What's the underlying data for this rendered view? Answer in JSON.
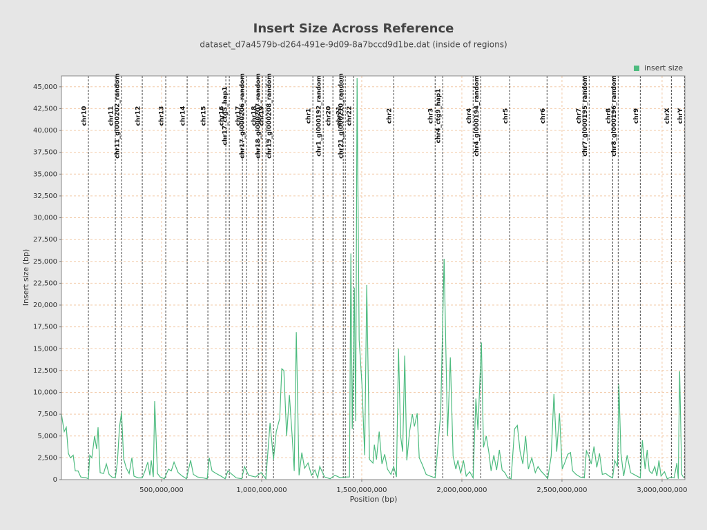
{
  "chart_data": {
    "type": "line",
    "title": "Insert Size Across Reference",
    "subtitle": "dataset_d7a4579b-d264-491e-9d09-8a7bccd9d1be.dat (inside of regions)",
    "x_label": "Position (bp)",
    "y_label": "Insert size (bp)",
    "xlim": [
      0,
      3114000000
    ],
    "ylim": [
      0,
      46250
    ],
    "xticks": [
      {
        "value": 500000000,
        "label": "500,000,000"
      },
      {
        "value": 1000000000,
        "label": "1,000,000,000"
      },
      {
        "value": 1500000000,
        "label": "1,500,000,000"
      },
      {
        "value": 2000000000,
        "label": "2,000,000,000"
      },
      {
        "value": 2500000000,
        "label": "2,500,000,000"
      },
      {
        "value": 3000000000,
        "label": "3,000,000,000"
      }
    ],
    "yticks": [
      0,
      {
        "value": 2500,
        "label": "2,500"
      },
      {
        "value": 5000,
        "label": "5,000"
      },
      {
        "value": 7500,
        "label": "7,500"
      },
      {
        "value": 10000,
        "label": "10,000"
      },
      {
        "value": 12500,
        "label": "12,500"
      },
      {
        "value": 15000,
        "label": "15,000"
      },
      {
        "value": 17500,
        "label": "17,500"
      },
      {
        "value": 20000,
        "label": "20,000"
      },
      {
        "value": 22500,
        "label": "22,500"
      },
      {
        "value": 25000,
        "label": "25,000"
      },
      {
        "value": 27500,
        "label": "27,500"
      },
      {
        "value": 30000,
        "label": "30,000"
      },
      {
        "value": 32500,
        "label": "32,500"
      },
      {
        "value": 35000,
        "label": "35,000"
      },
      {
        "value": 37500,
        "label": "37,500"
      },
      {
        "value": 40000,
        "label": "40,000"
      },
      {
        "value": 42500,
        "label": "42,500"
      },
      {
        "value": 45000,
        "label": "45,000"
      }
    ],
    "grid": true,
    "legend": "top-right",
    "x": [
      0,
      13800000,
      24150000,
      34500000,
      44850000,
      58650000,
      69000000,
      82800000,
      96600000,
      124200000,
      134550000,
      141450000,
      151800000,
      165600000,
      175950000,
      182850000,
      193200000,
      210450000,
      224250000,
      238050000,
      251850000,
      269100000,
      279450000,
      289800000,
      300150000,
      310500000,
      324300000,
      338100000,
      351900000,
      362250000,
      382950000,
      403650000,
      417450000,
      431250000,
      441600000,
      448500000,
      458850000,
      465750000,
      479550000,
      493350000,
      514050000,
      534750000,
      548550000,
      562350000,
      583050000,
      603750000,
      624450000,
      645150000,
      658950000,
      679650000,
      707250000,
      727950000,
      738300000,
      752100000,
      772800000,
      796950000,
      817650000,
      831450000,
      852150000,
      872850000,
      900450000,
      914250000,
      934950000,
      969450000,
      997050000,
      1021200000,
      1041900000,
      1059150000,
      1072950000,
      1090200000,
      1100550000,
      1110900000,
      1124700000,
      1138500000,
      1152300000,
      1162650000,
      1173000000,
      1186800000,
      1200600000,
      1214400000,
      1231650000,
      1248900000,
      1266150000,
      1279950000,
      1290300000,
      1314450000,
      1342050000,
      1366200000,
      1393800000,
      1417950000,
      1438650000,
      1445550000,
      1452450000,
      1462800000,
      1469700000,
      1476600000,
      1486950000,
      1500750000,
      1514550000,
      1524900000,
      1538700000,
      1555950000,
      1562850000,
      1573200000,
      1587000000,
      1600800000,
      1614600000,
      1628400000,
      1645650000,
      1659450000,
      1673250000,
      1683600000,
      1693950000,
      1704300000,
      1714650000,
      1725000000,
      1738800000,
      1752600000,
      1762950000,
      1776750000,
      1787100000,
      1800900000,
      1821600000,
      1842300000,
      1866450000,
      1880250000,
      1894050000,
      1911300000,
      1928550000,
      1942350000,
      1956150000,
      1969950000,
      1980300000,
      1994100000,
      2007900000,
      2021700000,
      2038950000,
      2056200000,
      2070000000,
      2080350000,
      2097600000,
      2107950000,
      2121750000,
      2135550000,
      2145900000,
      2159700000,
      2173500000,
      2187300000,
      2201100000,
      2214900000,
      2228700000,
      2245950000,
      2263200000,
      2277000000,
      2290800000,
      2304600000,
      2318400000,
      2332200000,
      2349450000,
      2366700000,
      2380500000,
      2394300000,
      2415000000,
      2428800000,
      2446050000,
      2459850000,
      2473650000,
      2487450000,
      2501250000,
      2515050000,
      2528850000,
      2542650000,
      2553000000,
      2570250000,
      2590950000,
      2611650000,
      2622000000,
      2632350000,
      2646150000,
      2659950000,
      2673750000,
      2687550000,
      2701350000,
      2718600000,
      2735850000,
      2753100000,
      2763450000,
      2777250000,
      2784150000,
      2794500000,
      2808300000,
      2825550000,
      2842800000,
      2866950000,
      2891100000,
      2901450000,
      2915250000,
      2925600000,
      2935950000,
      2949750000,
      2963550000,
      2973900000,
      2984250000,
      2994600000,
      3011850000,
      3025650000,
      3046350000,
      3060150000,
      3073950000,
      3080850000,
      3087750000,
      3098100000,
      3108450000
    ],
    "series": [
      {
        "name": "insert size",
        "color": "#4dbb7f",
        "values": [
          7500,
          5500,
          6000,
          3000,
          2500,
          2800,
          1000,
          1000,
          300,
          200,
          100,
          2800,
          2500,
          5000,
          3500,
          6000,
          800,
          700,
          1800,
          600,
          300,
          200,
          2000,
          6000,
          7700,
          2400,
          1300,
          700,
          2500,
          400,
          200,
          200,
          1000,
          2000,
          500,
          2200,
          300,
          9000,
          700,
          300,
          100,
          1200,
          1000,
          2000,
          800,
          400,
          100,
          2200,
          600,
          300,
          200,
          100,
          2500,
          1000,
          700,
          400,
          100,
          1000,
          600,
          200,
          100,
          1500,
          500,
          300,
          800,
          100,
          6500,
          2300,
          5500,
          7000,
          12700,
          12500,
          5000,
          9700,
          5000,
          1000,
          16900,
          500,
          3100,
          1300,
          1900,
          500,
          1100,
          200,
          1500,
          300,
          100,
          500,
          200,
          300,
          300,
          25900,
          5800,
          22000,
          6700,
          46000,
          16000,
          11000,
          2800,
          22300,
          2300,
          1900,
          4000,
          2300,
          5500,
          1800,
          2900,
          1200,
          600,
          1500,
          300,
          15000,
          5000,
          3200,
          14200,
          2200,
          5500,
          7500,
          6100,
          7600,
          2500,
          1800,
          600,
          400,
          200,
          3800,
          7500,
          25300,
          5000,
          14000,
          2700,
          1200,
          2200,
          700,
          2200,
          400,
          900,
          200,
          9300,
          5700,
          15700,
          3700,
          5000,
          3000,
          1000,
          2800,
          1100,
          3400,
          1100,
          800,
          200,
          100,
          5800,
          6200,
          3200,
          1800,
          5000,
          1200,
          2500,
          800,
          1500,
          1000,
          500,
          100,
          2700,
          9800,
          3200,
          7600,
          1200,
          2000,
          2900,
          3100,
          1000,
          600,
          300,
          200,
          3300,
          2800,
          1800,
          3800,
          1400,
          3000,
          600,
          700,
          400,
          200,
          2200,
          1500,
          10900,
          3000,
          400,
          2800,
          800,
          500,
          200,
          4500,
          1200,
          3400,
          1000,
          700,
          1500,
          400,
          2200,
          400,
          900,
          100,
          300,
          200,
          1900,
          100,
          12400,
          600,
          200
        ]
      }
    ],
    "regions": [
      {
        "label": "chr10",
        "position": 134550000
      },
      {
        "label": "chr11",
        "position": 269100000
      },
      {
        "label": "chr11_gl000202_random",
        "position": 300150000
      },
      {
        "label": "chr12",
        "position": 403650000
      },
      {
        "label": "chr13",
        "position": 520950000
      },
      {
        "label": "chr14",
        "position": 627900000
      },
      {
        "label": "chr15",
        "position": 731400000
      },
      {
        "label": "chr16",
        "position": 821100000
      },
      {
        "label": "chr17_ctg5_hap1",
        "position": 838350000
      },
      {
        "label": "chr17",
        "position": 903900000
      },
      {
        "label": "chr17_gl000206_random",
        "position": 924600000
      },
      {
        "label": "chr18",
        "position": 983250000
      },
      {
        "label": "chr18_gl000207_random",
        "position": 1003950000
      },
      {
        "label": "chr19",
        "position": 1021200000
      },
      {
        "label": "chr19_gl000208_random",
        "position": 1059150000
      },
      {
        "label": "chr1",
        "position": 1255800000
      },
      {
        "label": "chr1_gl000192_random",
        "position": 1307550000
      },
      {
        "label": "chr20",
        "position": 1355850000
      },
      {
        "label": "chr21",
        "position": 1407600000
      },
      {
        "label": "chr21_gl000210_random",
        "position": 1417950000
      },
      {
        "label": "chr22",
        "position": 1459350000
      },
      {
        "label": "chr2",
        "position": 1659450000
      },
      {
        "label": "chr3",
        "position": 1866450000
      },
      {
        "label": "chr4_ctg9_hap1",
        "position": 1904400000
      },
      {
        "label": "chr4",
        "position": 2056200000
      },
      {
        "label": "chr4_gl000194_random",
        "position": 2094150000
      },
      {
        "label": "chr5",
        "position": 2239050000
      },
      {
        "label": "chr6",
        "position": 2425350000
      },
      {
        "label": "chr7",
        "position": 2604750000
      },
      {
        "label": "chr7_gl000195_random",
        "position": 2635800000
      },
      {
        "label": "chr8",
        "position": 2753100000
      },
      {
        "label": "chr8_gl000196_random",
        "position": 2780700000
      },
      {
        "label": "chr9",
        "position": 2891100000
      },
      {
        "label": "chrX",
        "position": 3046350000
      },
      {
        "label": "chrY",
        "position": 3111900000
      }
    ]
  }
}
